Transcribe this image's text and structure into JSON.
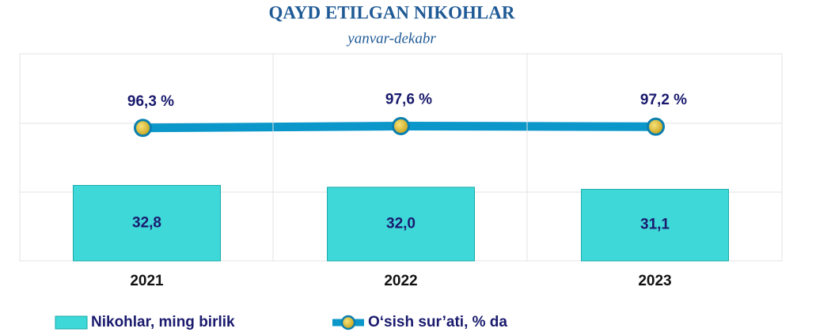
{
  "chart_data": {
    "type": "bar_line",
    "title": "QAYD ETILGAN NIKOHLAR",
    "subtitle": "yanvar-dekabr",
    "categories": [
      "2021",
      "2022",
      "2023"
    ],
    "ylim": [
      0,
      90
    ],
    "y2lim": [
      0,
      150
    ],
    "series": [
      {
        "name": "Nikohlar, ming birlik",
        "type": "bar",
        "color": "#3ed8d8",
        "values": [
          32.8,
          32.0,
          31.1
        ],
        "value_labels": [
          "32,8",
          "32,0",
          "31,1"
        ]
      },
      {
        "name": "O‘sish sur’ati, % da",
        "type": "line",
        "axis": "y2",
        "color": "#0b97c9",
        "values": [
          96.3,
          97.6,
          97.2
        ],
        "value_labels": [
          "96,3 %",
          "97,6 %",
          "97,2 %"
        ]
      }
    ]
  }
}
